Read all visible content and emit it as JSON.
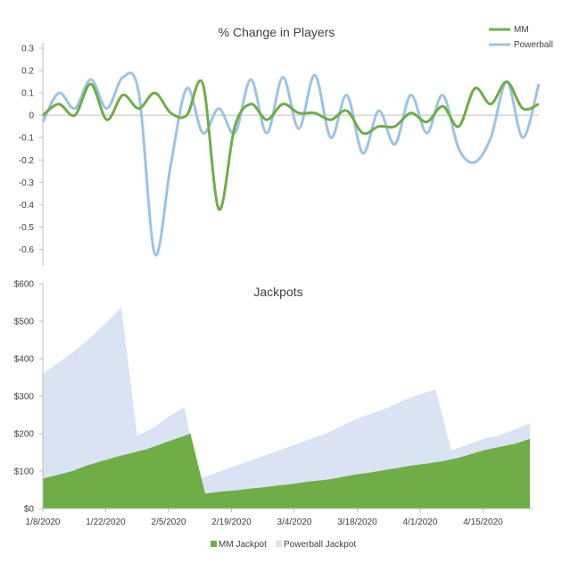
{
  "colors": {
    "mm": "#70ad47",
    "powerball": "#9dc3e6",
    "powerball_area": "#dae3f3",
    "axis": "#bfbfbf",
    "text": "#404040"
  },
  "chart_data": [
    {
      "type": "line",
      "title": "% Change in Players",
      "xlabel": "",
      "ylabel": "",
      "ylim": [
        -0.65,
        0.3
      ],
      "yticks": [
        0.3,
        0.2,
        0.1,
        0,
        -0.1,
        -0.2,
        -0.3,
        -0.4,
        -0.5,
        -0.6
      ],
      "ytick_labels": [
        "0.3",
        "0.2",
        "0.1",
        "0",
        "-0.1",
        "-0.2",
        "-0.3",
        "-0.4",
        "-0.5",
        "-0.6"
      ],
      "legend_position": "top-right",
      "series": [
        {
          "name": "MM",
          "values": [
            0,
            0.05,
            0,
            0.14,
            -0.02,
            0.09,
            0.03,
            0.1,
            0.01,
            0,
            0.14,
            -0.42,
            -0.05,
            0.05,
            -0.02,
            0.05,
            0.01,
            0.01,
            -0.02,
            0.02,
            -0.08,
            -0.05,
            -0.05,
            0.01,
            -0.03,
            0.04,
            -0.05,
            0.12,
            0.05,
            0.15,
            0.03,
            0.05
          ]
        },
        {
          "name": "Powerball",
          "values": [
            -0.03,
            0.1,
            0.03,
            0.16,
            0.03,
            0.17,
            0.1,
            -0.62,
            -0.22,
            0.12,
            -0.08,
            0.03,
            -0.08,
            0.16,
            -0.08,
            0.17,
            -0.06,
            0.18,
            -0.1,
            0.09,
            -0.17,
            0.02,
            -0.13,
            0.09,
            -0.08,
            0.09,
            -0.15,
            -0.21,
            -0.1,
            0.15,
            -0.1,
            0.14
          ]
        }
      ]
    },
    {
      "type": "area",
      "title": "Jackpots",
      "xlabel": "",
      "ylabel": "",
      "ylim": [
        0,
        600
      ],
      "ytick_labels": [
        "$600",
        "$500",
        "$400",
        "$300",
        "$200",
        "$100",
        "$0"
      ],
      "yticks": [
        600,
        500,
        400,
        300,
        200,
        100,
        0
      ],
      "x_tick_labels": [
        "1/8/2020",
        "1/22/2020",
        "2/5/2020",
        "2/19/2020",
        "3/4/2020",
        "3/18/2020",
        "4/1/2020",
        "4/15/2020"
      ],
      "legend_position": "bottom",
      "series": [
        {
          "name": "MM Jackpot",
          "values": [
            80,
            90,
            100,
            115,
            127,
            138,
            148,
            158,
            172,
            186,
            200,
            40,
            45,
            48,
            53,
            57,
            62,
            66,
            72,
            76,
            82,
            90,
            95,
            102,
            108,
            115,
            120,
            126,
            134,
            145,
            157,
            165,
            173,
            186
          ]
        },
        {
          "name": "Powerball Jackpot",
          "values": [
            359,
            390,
            420,
            455,
            495,
            537,
            195,
            215,
            245,
            270,
            80,
            95,
            110,
            125,
            140,
            155,
            170,
            185,
            200,
            220,
            240,
            255,
            270,
            290,
            305,
            318,
            155,
            170,
            185,
            195,
            210,
            228
          ]
        }
      ]
    }
  ]
}
